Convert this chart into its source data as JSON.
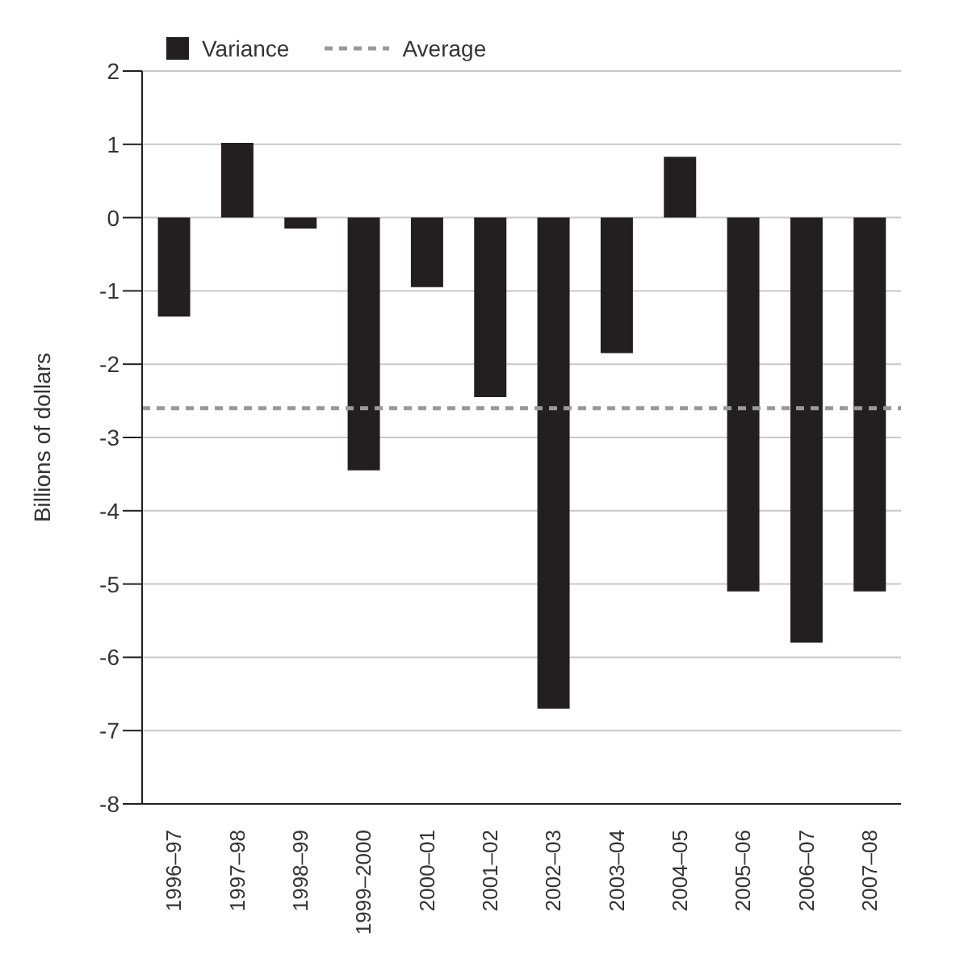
{
  "chart_data": {
    "type": "bar",
    "ylabel": "Billions of dollars",
    "categories": [
      "1996–97",
      "1997–98",
      "1998–99",
      "1999–2000",
      "2000–01",
      "2001–02",
      "2002–03",
      "2003–04",
      "2004–05",
      "2005–06",
      "2006–07",
      "2007–08"
    ],
    "series": [
      {
        "name": "Variance",
        "color": "#231f20",
        "values": [
          -1.35,
          1.02,
          -0.15,
          -3.45,
          -0.95,
          -2.45,
          -6.7,
          -1.85,
          0.83,
          -5.1,
          -5.8,
          -5.1
        ]
      }
    ],
    "ylim": [
      -8,
      2
    ],
    "yticks": [
      -8,
      -7,
      -6,
      -5,
      -4,
      -3,
      -2,
      -1,
      0,
      1,
      2
    ],
    "ref_lines": [
      {
        "axis": "y",
        "value": -2.6,
        "label": "Average",
        "color": "#999999",
        "line_style": "dashed"
      }
    ],
    "grid": "y",
    "legend": "top left"
  }
}
